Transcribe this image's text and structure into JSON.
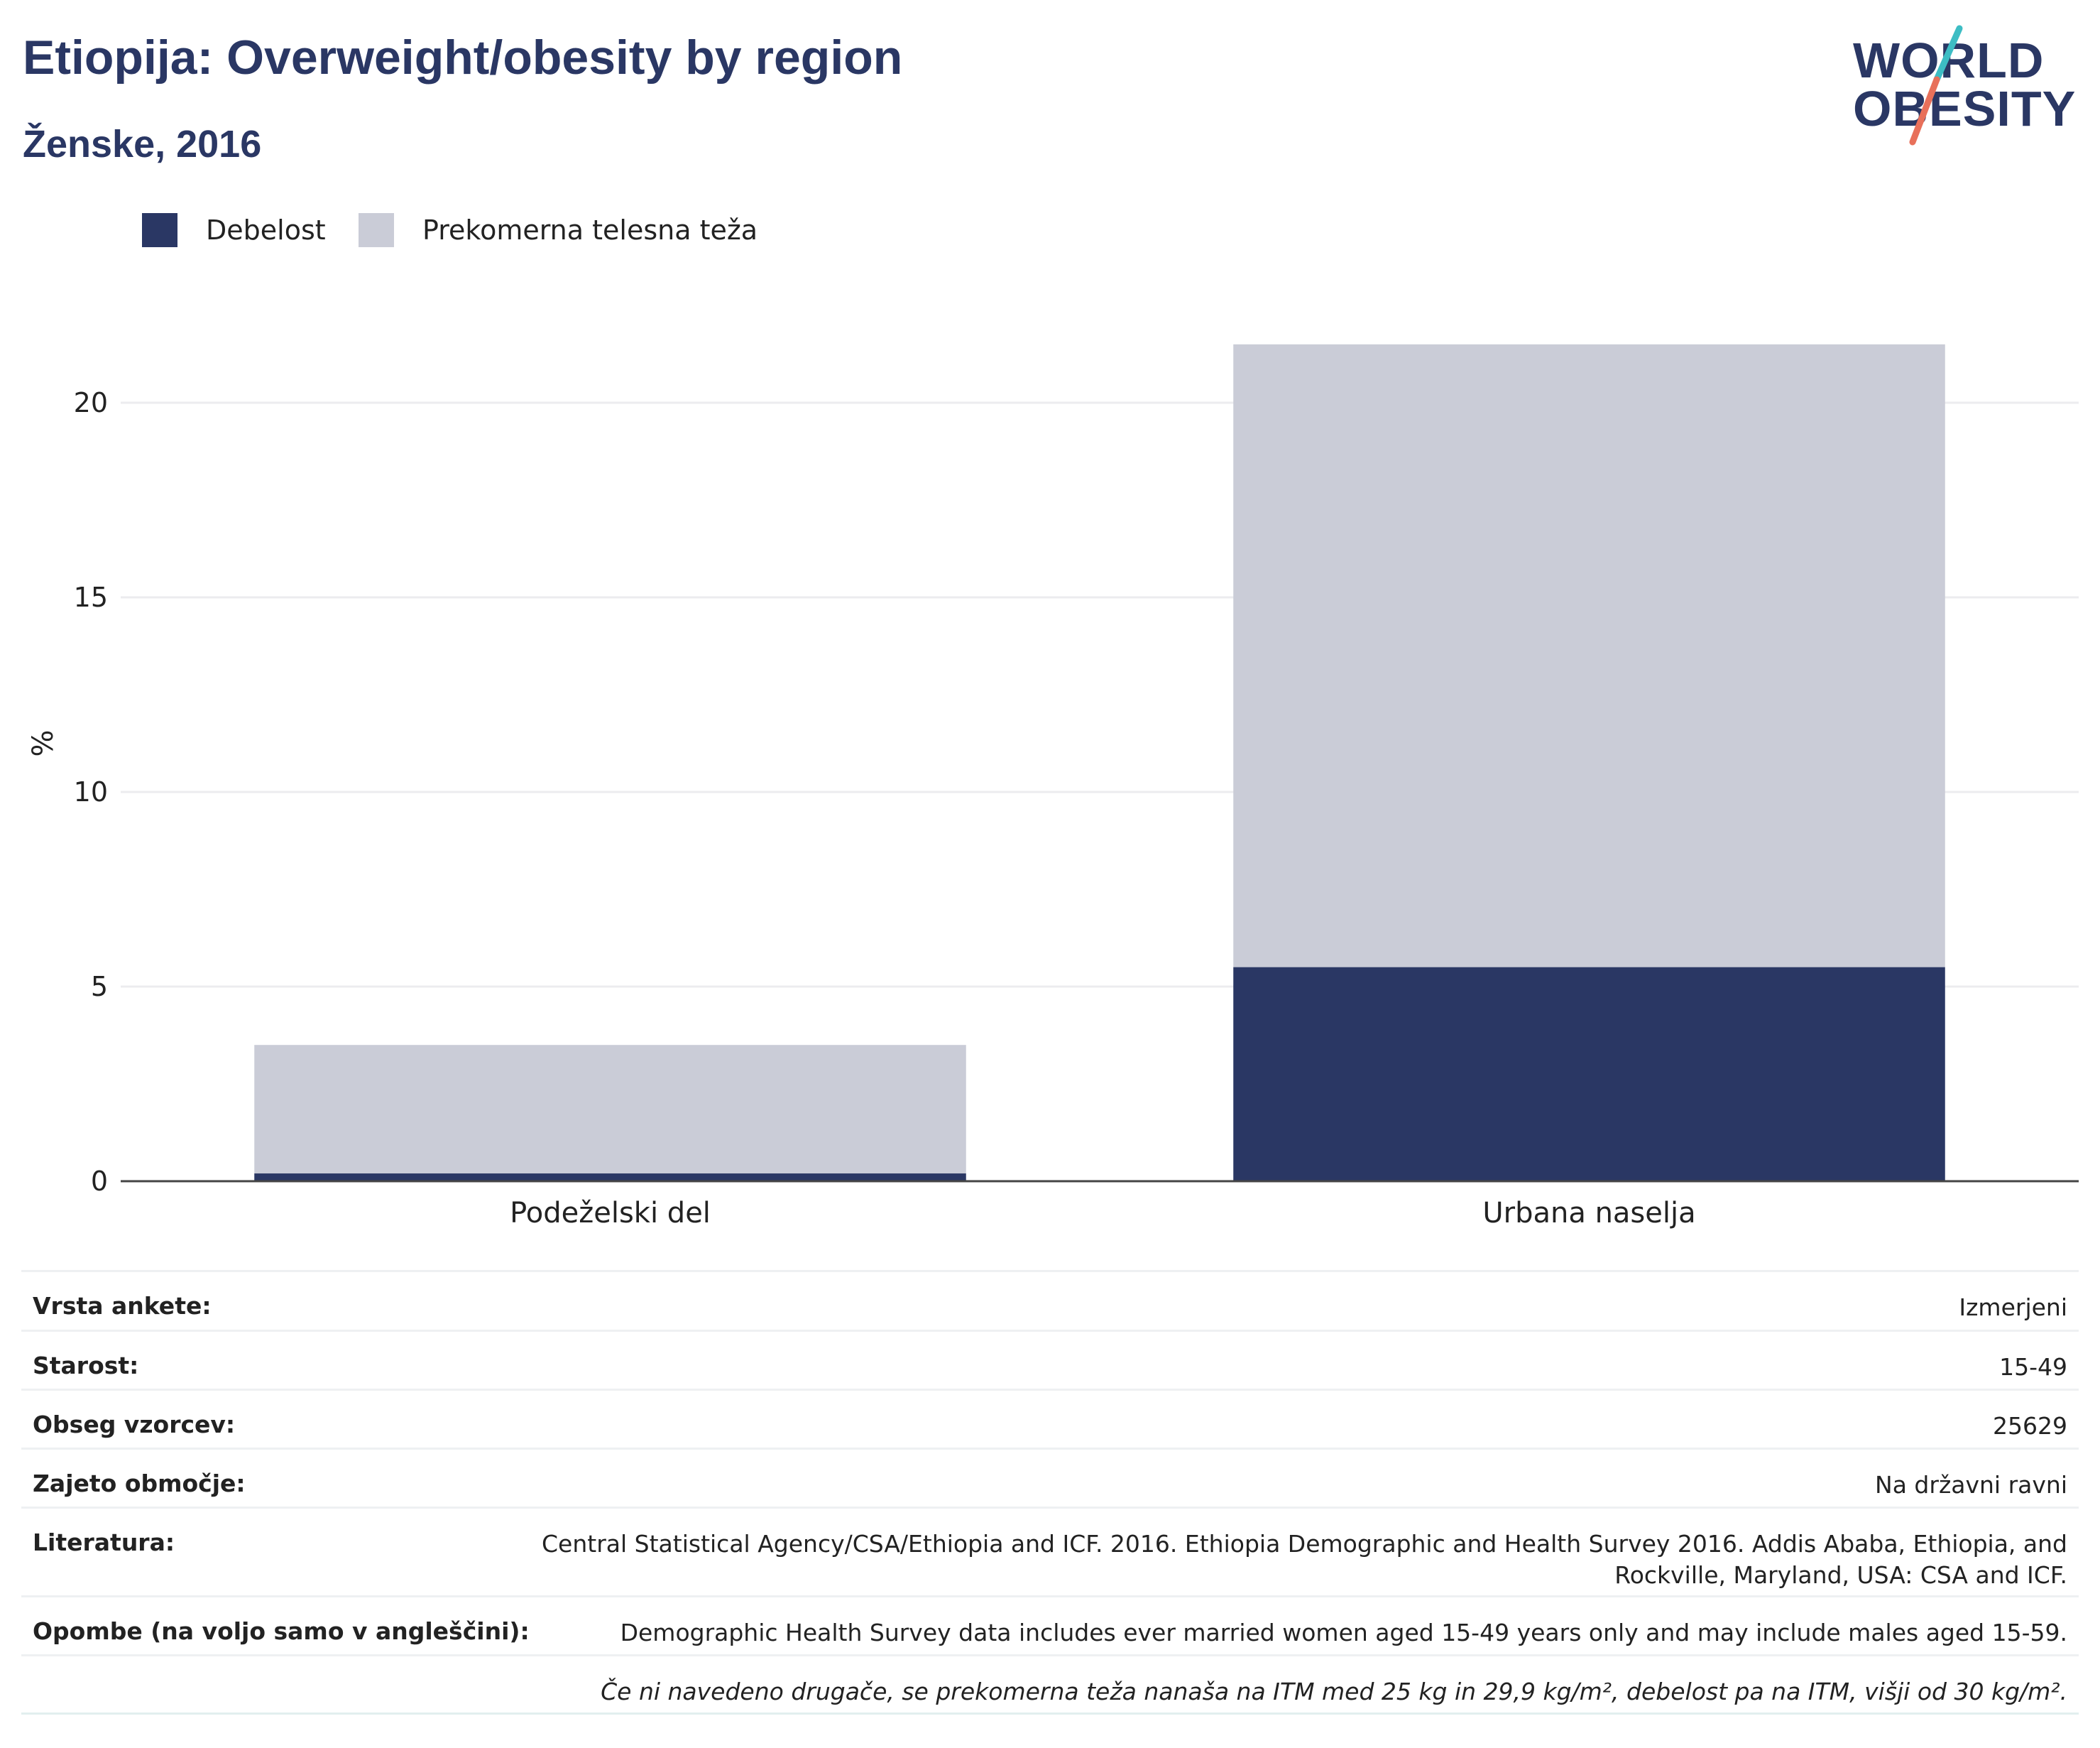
{
  "header": {
    "title": "Etiopija: Overweight/obesity by region",
    "subtitle": "Ženske, 2016"
  },
  "logo": {
    "line1": "WORLD",
    "line2": "OBESITY",
    "colors": {
      "text": "#2a3764",
      "slash_top": "#3dbdc4",
      "slash_bottom": "#e8705a"
    }
  },
  "colors": {
    "obesity": "#2a3764",
    "overweight": "#caccd7",
    "grid": "#ececef",
    "axis": "#444444",
    "text": "#222222"
  },
  "chart_data": {
    "type": "bar",
    "stacked": true,
    "categories": [
      "Podeželski del",
      "Urbana naselja"
    ],
    "series": [
      {
        "name": "Debelost",
        "values": [
          0.2,
          5.5
        ]
      },
      {
        "name": "Prekomerna telesna teža",
        "values": [
          3.3,
          16.0
        ]
      }
    ],
    "ylabel": "%",
    "ylim": [
      0,
      22.5
    ],
    "yticks": [
      0,
      5,
      10,
      15,
      20
    ],
    "grid": true,
    "legend_position": "top-left"
  },
  "meta": {
    "rows": [
      {
        "label": "Vrsta ankete:",
        "value": "Izmerjeni"
      },
      {
        "label": "Starost:",
        "value": "15-49"
      },
      {
        "label": "Obseg vzorcev:",
        "value": "25629"
      },
      {
        "label": "Zajeto območje:",
        "value": "Na državni ravni"
      },
      {
        "label": "Literatura:",
        "value_line1": "Central Statistical Agency/CSA/Ethiopia and ICF. 2016. Ethiopia Demographic and Health Survey 2016. Addis Ababa, Ethiopia, and",
        "value_line2": "Rockville, Maryland, USA: CSA and ICF."
      },
      {
        "label": "Opombe (na voljo samo v angleščini):",
        "value": "Demographic Health Survey data includes ever married women aged 15-49 years only and may include males aged 15-59."
      }
    ],
    "footnote": "Če ni navedeno drugače, se prekomerna teža nanaša na ITM med 25 kg in 29,9 kg/m², debelost pa na ITM, višji od 30 kg/m²."
  }
}
